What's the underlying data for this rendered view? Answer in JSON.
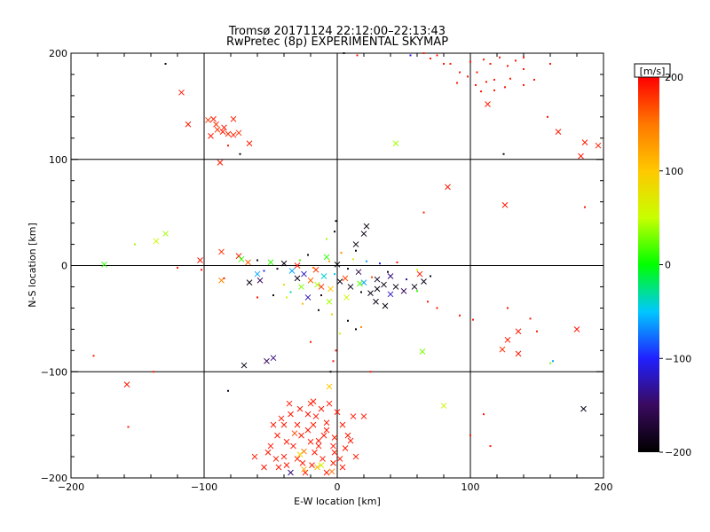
{
  "chart_data": {
    "type": "scatter",
    "title": "Tromsø 20171124 22:12:00–22:13:43",
    "subtitle": "RwPretec (8p) EXPERIMENTAL SKYMAP",
    "xlabel": "E-W location [km]",
    "ylabel": "N-S location [km]",
    "xlim": [
      -200,
      200
    ],
    "ylim": [
      -200,
      200
    ],
    "xticks": [
      "−200",
      "−100",
      "0",
      "100",
      "200"
    ],
    "yticks": [
      "−200",
      "−100",
      "0",
      "100",
      "200"
    ],
    "grid": true,
    "colorbar": {
      "label": "[m/s]",
      "range": [
        -200,
        200
      ],
      "ticks": [
        "200",
        "100",
        "0",
        "−100",
        "−200"
      ],
      "colors": [
        "#000000",
        "#3a0a5e",
        "#2020ff",
        "#00c8ff",
        "#00ff00",
        "#c8ff00",
        "#ffc800",
        "#ff7800",
        "#ff0000"
      ]
    },
    "series": [
      {
        "marker": "x",
        "points": [
          [
            -117,
            163,
            190
          ],
          [
            -112,
            133,
            190
          ],
          [
            -97,
            137,
            180
          ],
          [
            -93,
            138,
            190
          ],
          [
            -90,
            128,
            180
          ],
          [
            -85,
            130,
            190
          ],
          [
            -82,
            124,
            180
          ],
          [
            -78,
            123,
            190
          ],
          [
            -78,
            138,
            185
          ],
          [
            -74,
            125,
            180
          ],
          [
            -66,
            115,
            190
          ],
          [
            -88,
            97,
            190
          ],
          [
            -95,
            122,
            190
          ],
          [
            -86,
            126,
            190
          ],
          [
            -91,
            133,
            180
          ],
          [
            -103,
            5,
            190
          ],
          [
            -87,
            13,
            180
          ],
          [
            -74,
            9,
            190
          ],
          [
            -87,
            -14,
            140
          ],
          [
            -67,
            3,
            160
          ],
          [
            -72,
            6,
            10
          ],
          [
            -158,
            -112,
            190
          ],
          [
            -136,
            23,
            60
          ],
          [
            -129,
            30,
            40
          ],
          [
            -175,
            1,
            10
          ],
          [
            -50,
            3,
            10
          ],
          [
            -58,
            -14,
            -150
          ],
          [
            -60,
            -8,
            -60
          ],
          [
            -66,
            -16,
            -190
          ],
          [
            -70,
            -94,
            -190
          ],
          [
            -53,
            -90,
            -150
          ],
          [
            -48,
            -87,
            -140
          ],
          [
            -30,
            -12,
            -190
          ],
          [
            -25,
            -8,
            -120
          ],
          [
            -20,
            -14,
            160
          ],
          [
            -15,
            -18,
            40
          ],
          [
            -10,
            -10,
            -40
          ],
          [
            -5,
            -22,
            100
          ],
          [
            2,
            -15,
            -190
          ],
          [
            6,
            -12,
            170
          ],
          [
            10,
            -20,
            -190
          ],
          [
            16,
            -6,
            -160
          ],
          [
            20,
            -16,
            -60
          ],
          [
            25,
            -26,
            -190
          ],
          [
            30,
            -13,
            -180
          ],
          [
            35,
            -18,
            -190
          ],
          [
            40,
            -10,
            -140
          ],
          [
            44,
            -20,
            -190
          ],
          [
            50,
            -24,
            -150
          ],
          [
            58,
            -20,
            -190
          ],
          [
            62,
            -8,
            190
          ],
          [
            65,
            -15,
            -190
          ],
          [
            40,
            -27,
            -120
          ],
          [
            29,
            -34,
            -190
          ],
          [
            36,
            -38,
            -190
          ],
          [
            20,
            30,
            -190
          ],
          [
            22,
            37,
            -190
          ],
          [
            14,
            20,
            -190
          ],
          [
            -6,
            -34,
            40
          ],
          [
            -22,
            -30,
            -120
          ],
          [
            -40,
            2,
            -190
          ],
          [
            -30,
            0,
            190
          ],
          [
            -16,
            -4,
            180
          ],
          [
            -8,
            8,
            10
          ],
          [
            -34,
            -5,
            -60
          ],
          [
            -27,
            -20,
            30
          ],
          [
            0,
            1,
            -190
          ],
          [
            17,
            -17,
            20
          ],
          [
            7,
            -30,
            60
          ],
          [
            -12,
            -20,
            180
          ],
          [
            30,
            -22,
            -190
          ],
          [
            44,
            115,
            40
          ],
          [
            83,
            74,
            190
          ],
          [
            126,
            57,
            190
          ],
          [
            113,
            152,
            190
          ],
          [
            166,
            126,
            190
          ],
          [
            186,
            116,
            190
          ],
          [
            196,
            113,
            190
          ],
          [
            183,
            103,
            190
          ],
          [
            128,
            -70,
            190
          ],
          [
            136,
            -62,
            190
          ],
          [
            124,
            -79,
            180
          ],
          [
            136,
            -83,
            190
          ],
          [
            180,
            -60,
            190
          ],
          [
            185,
            -135,
            -190
          ],
          [
            64,
            -81,
            30
          ],
          [
            80,
            -132,
            60
          ],
          [
            -22,
            -140,
            190
          ],
          [
            -18,
            -150,
            190
          ],
          [
            -27,
            -160,
            190
          ],
          [
            -14,
            -165,
            190
          ],
          [
            -8,
            -155,
            190
          ],
          [
            -3,
            -170,
            190
          ],
          [
            -33,
            -170,
            190
          ],
          [
            -40,
            -180,
            190
          ],
          [
            -38,
            -188,
            190
          ],
          [
            -30,
            -182,
            190
          ],
          [
            -24,
            -195,
            190
          ],
          [
            -19,
            -188,
            190
          ],
          [
            -11,
            -182,
            190
          ],
          [
            -8,
            -195,
            190
          ],
          [
            -3,
            -186,
            190
          ],
          [
            -25,
            -175,
            150
          ],
          [
            -15,
            -190,
            110
          ],
          [
            -30,
            -150,
            190
          ],
          [
            -12,
            -135,
            190
          ],
          [
            -6,
            -130,
            190
          ],
          [
            -20,
            -130,
            190
          ],
          [
            -35,
            -140,
            190
          ],
          [
            -45,
            -160,
            190
          ],
          [
            -50,
            -170,
            190
          ],
          [
            -48,
            -150,
            190
          ],
          [
            -42,
            -144,
            190
          ],
          [
            -28,
            -135,
            190
          ],
          [
            -16,
            -142,
            190
          ],
          [
            0,
            -138,
            190
          ],
          [
            4,
            -150,
            190
          ],
          [
            10,
            -165,
            190
          ],
          [
            14,
            -180,
            190
          ],
          [
            4,
            -190,
            190
          ],
          [
            -6,
            -114,
            100
          ],
          [
            -62,
            -180,
            190
          ],
          [
            -55,
            -190,
            190
          ],
          [
            -35,
            -195,
            -140
          ],
          [
            20,
            -142,
            190
          ],
          [
            -2,
            -176,
            190
          ],
          [
            -10,
            -160,
            190
          ],
          [
            -20,
            -166,
            190
          ],
          [
            -32,
            -158,
            170
          ],
          [
            -46,
            -182,
            190
          ],
          [
            6,
            -172,
            190
          ],
          [
            8,
            -160,
            190
          ],
          [
            -25,
            -192,
            120
          ],
          [
            -44,
            -190,
            190
          ],
          [
            -36,
            -130,
            190
          ],
          [
            -8,
            -148,
            190
          ],
          [
            -14,
            -170,
            190
          ],
          [
            -2,
            -162,
            190
          ],
          [
            12,
            -142,
            190
          ],
          [
            -28,
            -178,
            90
          ],
          [
            -17,
            -176,
            190
          ],
          [
            -38,
            -166,
            190
          ],
          [
            -52,
            -176,
            190
          ],
          [
            -4,
            -194,
            150
          ],
          [
            2,
            -182,
            190
          ],
          [
            -22,
            -155,
            190
          ],
          [
            -26,
            -186,
            190
          ],
          [
            -12,
            -188,
            60
          ],
          [
            -40,
            -150,
            190
          ],
          [
            -18,
            -128,
            190
          ]
        ]
      },
      {
        "marker": "dot",
        "points": [
          [
            -129,
            190,
            -190
          ],
          [
            -82,
            113,
            190
          ],
          [
            -73,
            105,
            -190
          ],
          [
            -120,
            -2,
            190
          ],
          [
            -102,
            -4,
            190
          ],
          [
            -152,
            20,
            40
          ],
          [
            -183,
            -85,
            190
          ],
          [
            -138,
            -100,
            190
          ],
          [
            -157,
            -152,
            190
          ],
          [
            -82,
            -118,
            -180
          ],
          [
            -60,
            5,
            -190
          ],
          [
            -55,
            -5,
            -100
          ],
          [
            -45,
            -3,
            -190
          ],
          [
            -40,
            -18,
            80
          ],
          [
            -35,
            -25,
            -30
          ],
          [
            -28,
            5,
            20
          ],
          [
            -22,
            10,
            -190
          ],
          [
            -18,
            -2,
            150
          ],
          [
            -12,
            -28,
            -190
          ],
          [
            -6,
            4,
            120
          ],
          [
            -2,
            -8,
            -50
          ],
          [
            3,
            12,
            140
          ],
          [
            8,
            -3,
            -190
          ],
          [
            12,
            6,
            70
          ],
          [
            18,
            -25,
            -190
          ],
          [
            22,
            4,
            -60
          ],
          [
            26,
            -11,
            170
          ],
          [
            32,
            2,
            -100
          ],
          [
            38,
            -6,
            -190
          ],
          [
            45,
            3,
            190
          ],
          [
            52,
            -13,
            -130
          ],
          [
            60,
            -24,
            10
          ],
          [
            68,
            -34,
            190
          ],
          [
            75,
            -40,
            190
          ],
          [
            92,
            -47,
            190
          ],
          [
            -48,
            -28,
            -190
          ],
          [
            -38,
            -30,
            60
          ],
          [
            -26,
            -36,
            110
          ],
          [
            -14,
            -42,
            -190
          ],
          [
            -4,
            -46,
            90
          ],
          [
            8,
            -52,
            -190
          ],
          [
            18,
            -58,
            140
          ],
          [
            2,
            -64,
            60
          ],
          [
            14,
            14,
            -190
          ],
          [
            -1,
            42,
            -190
          ],
          [
            -2,
            32,
            -190
          ],
          [
            -8,
            25,
            40
          ],
          [
            -1,
            -80,
            190
          ],
          [
            -3,
            -90,
            190
          ],
          [
            -5,
            -100,
            -190
          ],
          [
            -20,
            -72,
            190
          ],
          [
            25,
            -100,
            190
          ],
          [
            14,
            -60,
            -190
          ],
          [
            100,
            192,
            190
          ],
          [
            105,
            182,
            190
          ],
          [
            110,
            194,
            190
          ],
          [
            115,
            190,
            190
          ],
          [
            122,
            196,
            190
          ],
          [
            128,
            188,
            190
          ],
          [
            134,
            193,
            190
          ],
          [
            140,
            185,
            190
          ],
          [
            85,
            190,
            190
          ],
          [
            92,
            182,
            190
          ],
          [
            98,
            178,
            190
          ],
          [
            104,
            170,
            190
          ],
          [
            118,
            175,
            190
          ],
          [
            126,
            168,
            190
          ],
          [
            108,
            164,
            190
          ],
          [
            90,
            172,
            190
          ],
          [
            140,
            170,
            190
          ],
          [
            148,
            175,
            190
          ],
          [
            160,
            190,
            190
          ],
          [
            112,
            173,
            190
          ],
          [
            118,
            165,
            190
          ],
          [
            130,
            176,
            190
          ],
          [
            140,
            196,
            190
          ],
          [
            75,
            198,
            190
          ],
          [
            80,
            190,
            190
          ],
          [
            70,
            195,
            190
          ],
          [
            158,
            140,
            190
          ],
          [
            186,
            55,
            190
          ],
          [
            125,
            105,
            -190
          ],
          [
            65,
            50,
            190
          ],
          [
            102,
            -51,
            190
          ],
          [
            128,
            -40,
            190
          ],
          [
            150,
            -62,
            190
          ],
          [
            162,
            -90,
            -60
          ],
          [
            100,
            -160,
            190
          ],
          [
            110,
            -140,
            190
          ],
          [
            115,
            -170,
            190
          ],
          [
            145,
            -50,
            190
          ],
          [
            60,
            -4,
            60
          ],
          [
            70,
            -10,
            -190
          ],
          [
            160,
            -92,
            30
          ],
          [
            -85,
            -12,
            190
          ],
          [
            -60,
            -30,
            190
          ],
          [
            5,
            200,
            -190
          ],
          [
            15,
            198,
            190
          ],
          [
            55,
            198,
            -100
          ],
          [
            65,
            200,
            190
          ]
        ]
      }
    ]
  }
}
